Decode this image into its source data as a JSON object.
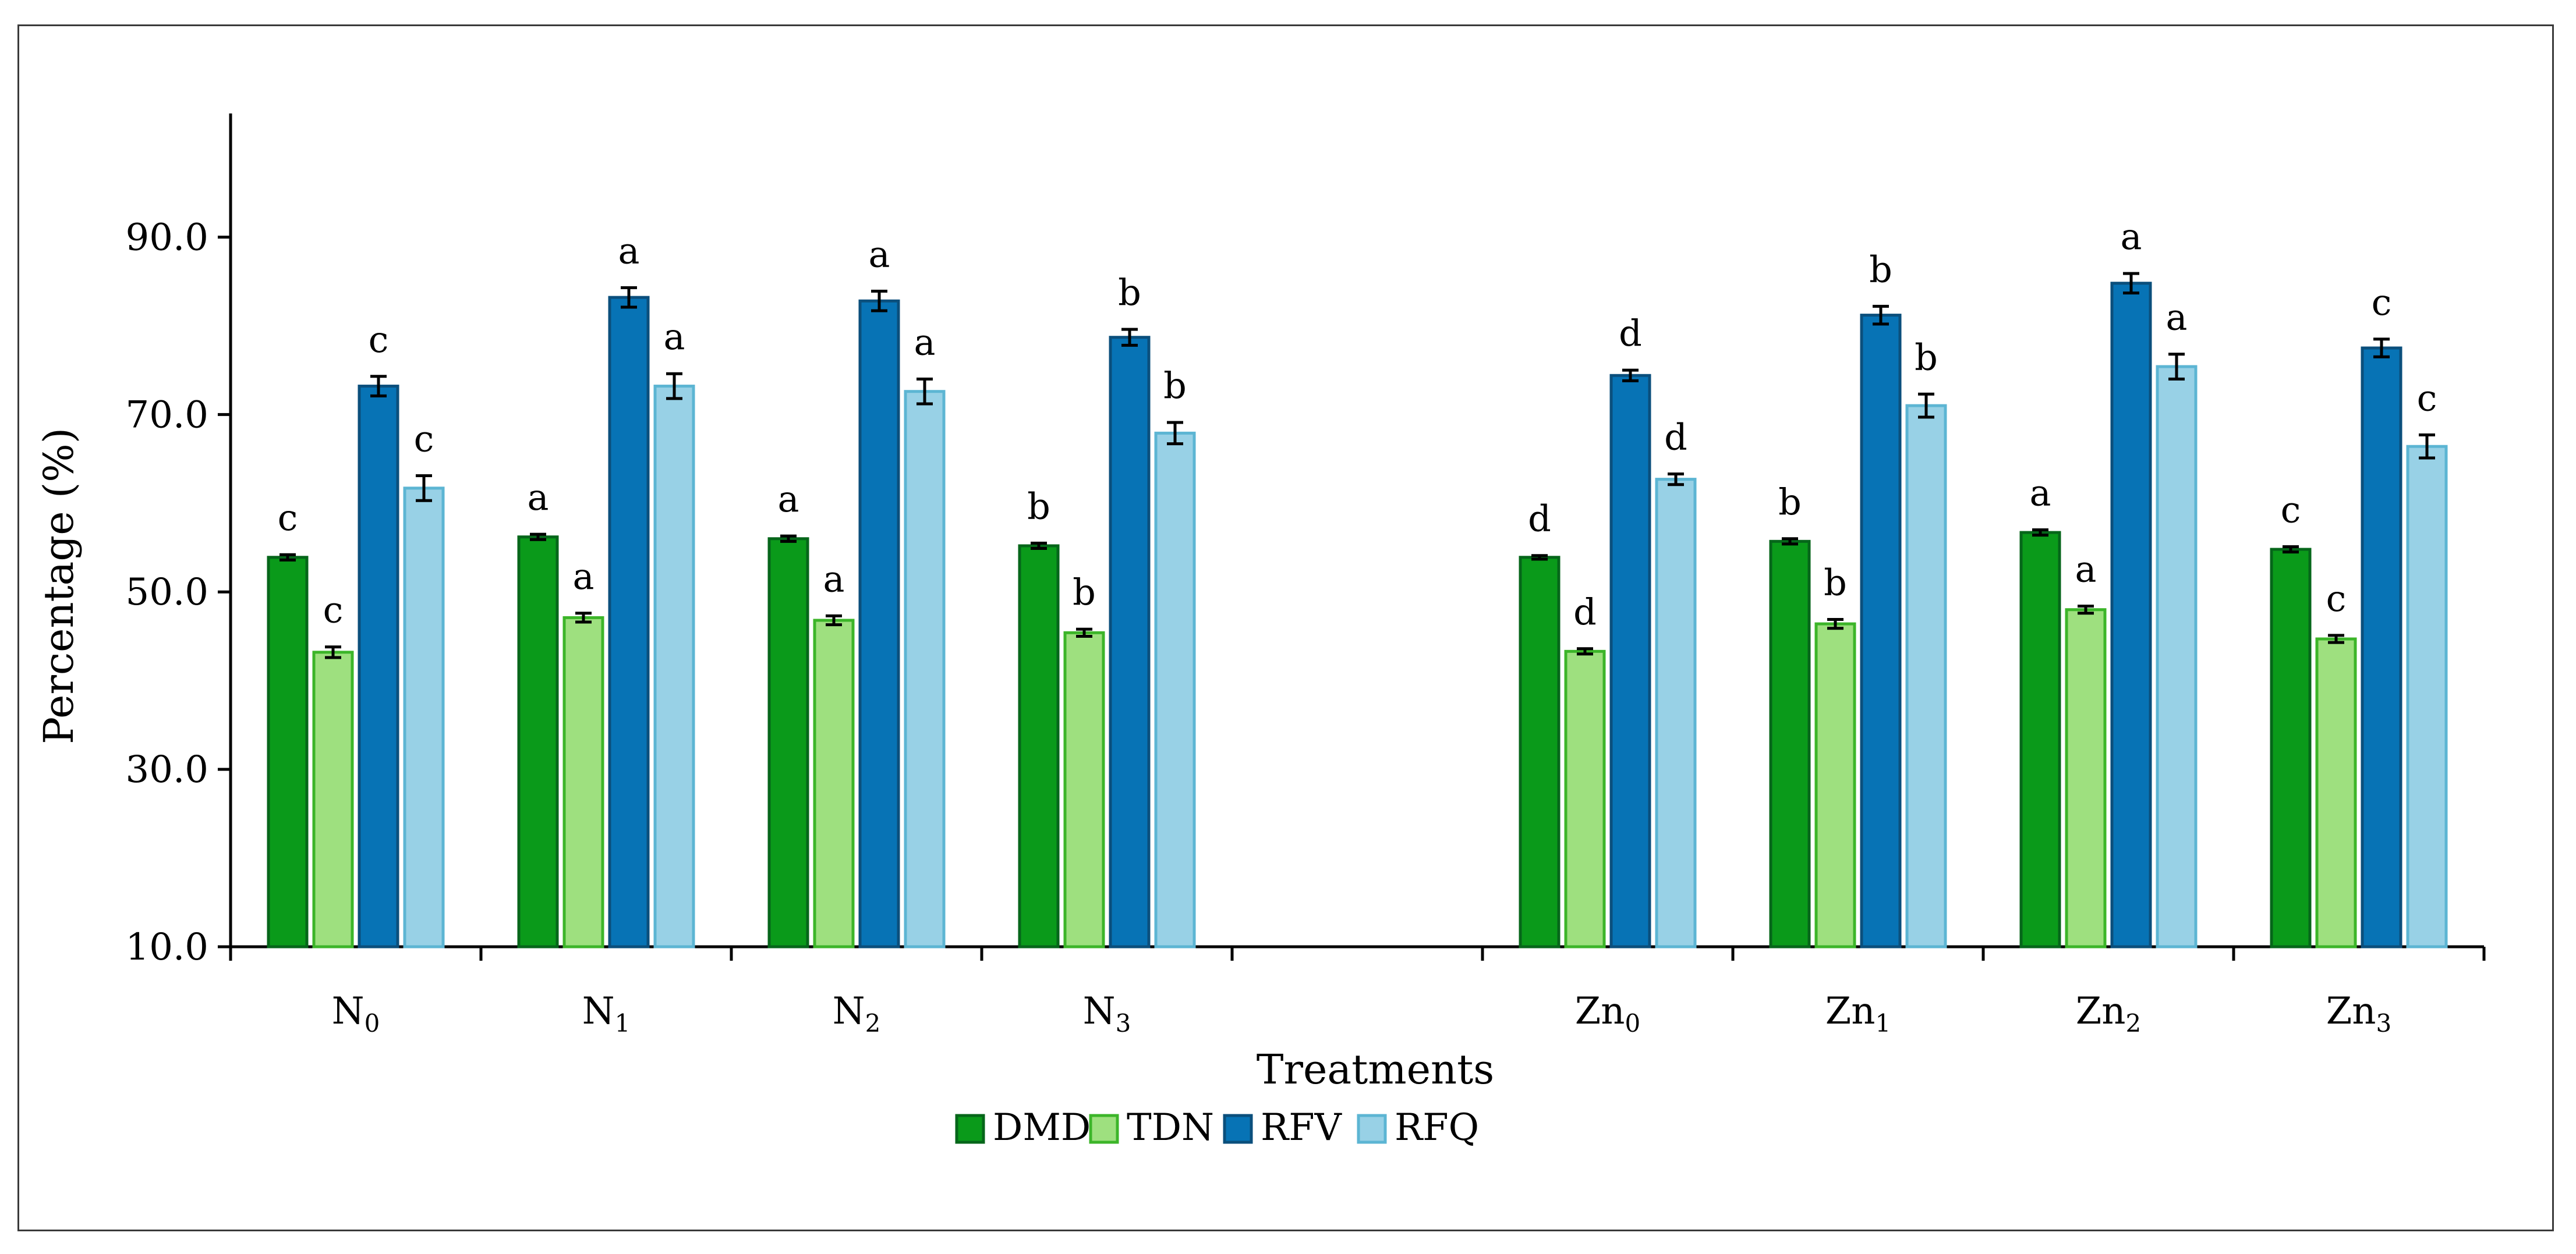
{
  "chart_data": {
    "type": "bar",
    "title": "",
    "xlabel": "Treatments",
    "ylabel": "Percentage (%)",
    "ylim": [
      10,
      100
    ],
    "yticks": [
      10,
      30,
      50,
      70,
      90
    ],
    "ytick_labels": [
      "10.0",
      "30.0",
      "50.0",
      "70.0",
      "90.0"
    ],
    "grid": false,
    "legend_position": "bottom-center",
    "categories": [
      {
        "base": "N",
        "sub": "0"
      },
      {
        "base": "N",
        "sub": "1"
      },
      {
        "base": "N",
        "sub": "2"
      },
      {
        "base": "N",
        "sub": "3"
      },
      {
        "base": "",
        "sub": ""
      },
      {
        "base": "Zn",
        "sub": "0"
      },
      {
        "base": "Zn",
        "sub": "1"
      },
      {
        "base": "Zn",
        "sub": "2"
      },
      {
        "base": "Zn",
        "sub": "3"
      }
    ],
    "series": [
      {
        "name": "DMD",
        "color": "#0a9a1a",
        "stroke": "#06661a",
        "values": [
          53.9,
          56.2,
          56.0,
          55.2,
          null,
          53.9,
          55.7,
          56.7,
          54.8
        ],
        "errors": [
          0.3,
          0.3,
          0.3,
          0.3,
          null,
          0.2,
          0.3,
          0.3,
          0.3
        ],
        "letters": [
          "c",
          "a",
          "a",
          "b",
          "",
          "d",
          "b",
          "a",
          "c"
        ]
      },
      {
        "name": "TDN",
        "color": "#9ee07f",
        "stroke": "#3cb529",
        "values": [
          43.2,
          47.1,
          46.8,
          45.4,
          null,
          43.3,
          46.4,
          48.0,
          44.7
        ],
        "errors": [
          0.6,
          0.5,
          0.5,
          0.4,
          null,
          0.3,
          0.5,
          0.4,
          0.4
        ],
        "letters": [
          "c",
          "a",
          "a",
          "b",
          "",
          "d",
          "b",
          "a",
          "c"
        ]
      },
      {
        "name": "RFV",
        "color": "#0773b5",
        "stroke": "#0b4f7c",
        "values": [
          73.2,
          83.2,
          82.8,
          78.7,
          null,
          74.4,
          81.2,
          84.8,
          77.5
        ],
        "errors": [
          1.1,
          1.1,
          1.1,
          0.9,
          null,
          0.6,
          1.0,
          1.1,
          1.0
        ],
        "letters": [
          "c",
          "a",
          "a",
          "b",
          "",
          "d",
          "b",
          "a",
          "c"
        ]
      },
      {
        "name": "RFQ",
        "color": "#98d1e6",
        "stroke": "#5cb5d3",
        "values": [
          61.7,
          73.2,
          72.6,
          67.9,
          null,
          62.7,
          71.0,
          75.4,
          66.4
        ],
        "errors": [
          1.4,
          1.4,
          1.4,
          1.2,
          null,
          0.6,
          1.3,
          1.4,
          1.3
        ],
        "letters": [
          "c",
          "a",
          "a",
          "b",
          "",
          "d",
          "b",
          "a",
          "c"
        ]
      }
    ]
  }
}
